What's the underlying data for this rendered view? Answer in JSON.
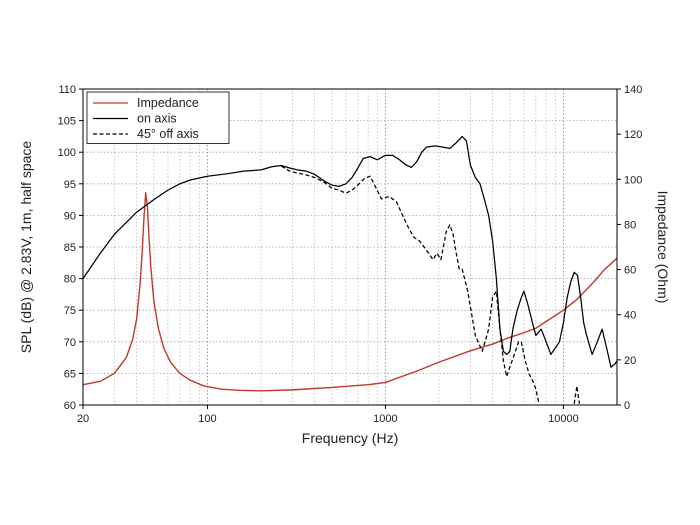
{
  "chart_data": {
    "type": "line",
    "title": "",
    "xlabel": "Frequency (Hz)",
    "ylabel_left": "SPL (dB) @ 2.83V, 1m, half space",
    "ylabel_right": "Impedance (Ohm)",
    "x_scale": "log",
    "xlim": [
      20,
      20000
    ],
    "ylim_left": [
      60,
      110
    ],
    "ylim_right": [
      0,
      140
    ],
    "x_ticks": [
      20,
      100,
      1000,
      10000
    ],
    "x_tick_labels": [
      "20",
      "100",
      "1000",
      "10000"
    ],
    "y_left_ticks": [
      60,
      65,
      70,
      75,
      80,
      85,
      90,
      95,
      100,
      105,
      110
    ],
    "y_left_tick_labels": [
      "60",
      "65",
      "70",
      "75",
      "80",
      "85",
      "90",
      "95",
      "100",
      "105",
      "110"
    ],
    "y_right_ticks": [
      0,
      20,
      40,
      60,
      80,
      100,
      120,
      140
    ],
    "y_right_tick_labels": [
      "0",
      "20",
      "40",
      "60",
      "80",
      "100",
      "120",
      "140"
    ],
    "grid": true,
    "legend_position": "top-left",
    "series": [
      {
        "name": "Impedance",
        "axis": "right",
        "color": "#c0392b",
        "dash": "solid",
        "points": [
          [
            20,
            9
          ],
          [
            25,
            10.5
          ],
          [
            30,
            14
          ],
          [
            35,
            21
          ],
          [
            38,
            29
          ],
          [
            40,
            38
          ],
          [
            42,
            55
          ],
          [
            43,
            68
          ],
          [
            44,
            83
          ],
          [
            45,
            94
          ],
          [
            46,
            88
          ],
          [
            47,
            74
          ],
          [
            48,
            62
          ],
          [
            50,
            46
          ],
          [
            53,
            34
          ],
          [
            57,
            25
          ],
          [
            62,
            19
          ],
          [
            70,
            14
          ],
          [
            80,
            11
          ],
          [
            95,
            8.5
          ],
          [
            120,
            7
          ],
          [
            150,
            6.5
          ],
          [
            200,
            6.3
          ],
          [
            300,
            6.7
          ],
          [
            500,
            7.8
          ],
          [
            800,
            9
          ],
          [
            1000,
            10
          ],
          [
            1500,
            15
          ],
          [
            2000,
            19
          ],
          [
            3000,
            24
          ],
          [
            4000,
            27
          ],
          [
            5000,
            30
          ],
          [
            6000,
            32
          ],
          [
            7000,
            34
          ],
          [
            8000,
            37
          ],
          [
            10000,
            42
          ],
          [
            12000,
            47
          ],
          [
            15000,
            55
          ],
          [
            17000,
            60
          ],
          [
            20000,
            65
          ]
        ]
      },
      {
        "name": "on axis",
        "axis": "left",
        "color": "#000000",
        "dash": "solid",
        "points": [
          [
            20,
            80
          ],
          [
            25,
            84
          ],
          [
            30,
            87
          ],
          [
            40,
            90.5
          ],
          [
            50,
            92.5
          ],
          [
            60,
            94
          ],
          [
            70,
            95
          ],
          [
            80,
            95.6
          ],
          [
            100,
            96.2
          ],
          [
            130,
            96.6
          ],
          [
            160,
            97
          ],
          [
            200,
            97.2
          ],
          [
            230,
            97.7
          ],
          [
            260,
            97.9
          ],
          [
            290,
            97.5
          ],
          [
            320,
            97.2
          ],
          [
            360,
            97
          ],
          [
            400,
            96.5
          ],
          [
            450,
            95.5
          ],
          [
            500,
            94.8
          ],
          [
            550,
            94.6
          ],
          [
            600,
            95
          ],
          [
            650,
            96
          ],
          [
            700,
            97.5
          ],
          [
            750,
            99
          ],
          [
            820,
            99.3
          ],
          [
            900,
            98.8
          ],
          [
            1000,
            99.5
          ],
          [
            1100,
            99.5
          ],
          [
            1200,
            98.8
          ],
          [
            1300,
            98
          ],
          [
            1400,
            97.6
          ],
          [
            1500,
            98.5
          ],
          [
            1600,
            100
          ],
          [
            1700,
            100.8
          ],
          [
            1900,
            101
          ],
          [
            2100,
            100.8
          ],
          [
            2300,
            100.6
          ],
          [
            2500,
            101.5
          ],
          [
            2700,
            102.5
          ],
          [
            2850,
            101.8
          ],
          [
            3000,
            98
          ],
          [
            3200,
            96
          ],
          [
            3400,
            95
          ],
          [
            3600,
            92.5
          ],
          [
            3800,
            90
          ],
          [
            4000,
            86
          ],
          [
            4200,
            80
          ],
          [
            4400,
            72
          ],
          [
            4600,
            68.5
          ],
          [
            4800,
            68
          ],
          [
            5000,
            68.5
          ],
          [
            5200,
            72
          ],
          [
            5500,
            75
          ],
          [
            5800,
            77
          ],
          [
            6000,
            78
          ],
          [
            6300,
            76
          ],
          [
            6700,
            73
          ],
          [
            7000,
            71
          ],
          [
            7500,
            72
          ],
          [
            8000,
            70
          ],
          [
            8500,
            68
          ],
          [
            9000,
            69
          ],
          [
            9500,
            70
          ],
          [
            10000,
            73
          ],
          [
            10500,
            77
          ],
          [
            11000,
            79.5
          ],
          [
            11500,
            81
          ],
          [
            12000,
            80.5
          ],
          [
            12500,
            77
          ],
          [
            13000,
            73
          ],
          [
            13500,
            71
          ],
          [
            14500,
            68
          ],
          [
            15500,
            70
          ],
          [
            16500,
            72
          ],
          [
            17500,
            69
          ],
          [
            18500,
            66
          ],
          [
            19500,
            66.5
          ],
          [
            20000,
            67
          ]
        ]
      },
      {
        "name": "45° off axis",
        "axis": "left",
        "color": "#000000",
        "dash": "dashed",
        "points": [
          [
            260,
            97.8
          ],
          [
            290,
            97
          ],
          [
            320,
            96.7
          ],
          [
            360,
            96.4
          ],
          [
            400,
            96
          ],
          [
            450,
            95.3
          ],
          [
            500,
            94.3
          ],
          [
            550,
            94
          ],
          [
            600,
            93.5
          ],
          [
            650,
            94
          ],
          [
            700,
            94.8
          ],
          [
            760,
            95.8
          ],
          [
            820,
            96.2
          ],
          [
            880,
            94.5
          ],
          [
            950,
            92.6
          ],
          [
            1050,
            93
          ],
          [
            1150,
            92.2
          ],
          [
            1250,
            90
          ],
          [
            1350,
            88
          ],
          [
            1450,
            86.5
          ],
          [
            1550,
            86
          ],
          [
            1650,
            85
          ],
          [
            1750,
            84
          ],
          [
            1850,
            83
          ],
          [
            1950,
            84
          ],
          [
            2050,
            83
          ],
          [
            2200,
            87.5
          ],
          [
            2300,
            88.5
          ],
          [
            2400,
            87
          ],
          [
            2500,
            84
          ],
          [
            2600,
            81.5
          ],
          [
            2700,
            81.5
          ],
          [
            2900,
            78
          ],
          [
            3200,
            71
          ],
          [
            3500,
            68.5
          ],
          [
            3800,
            72
          ],
          [
            4000,
            77
          ],
          [
            4200,
            78
          ],
          [
            4400,
            72
          ],
          [
            4600,
            67
          ],
          [
            4800,
            64.5
          ],
          [
            5000,
            66
          ],
          [
            5300,
            68
          ],
          [
            5600,
            70
          ],
          [
            5800,
            70
          ],
          [
            6100,
            67
          ],
          [
            6400,
            65
          ],
          [
            6800,
            63.5
          ],
          [
            7000,
            62.5
          ],
          [
            7300,
            60.2
          ]
        ]
      },
      {
        "name": "45° off axis fragment",
        "axis": "left",
        "color": "#000000",
        "dash": "dashed",
        "legend": false,
        "points": [
          [
            11500,
            60.2
          ],
          [
            11900,
            63
          ],
          [
            12100,
            61.5
          ],
          [
            12300,
            60.2
          ]
        ]
      }
    ]
  }
}
